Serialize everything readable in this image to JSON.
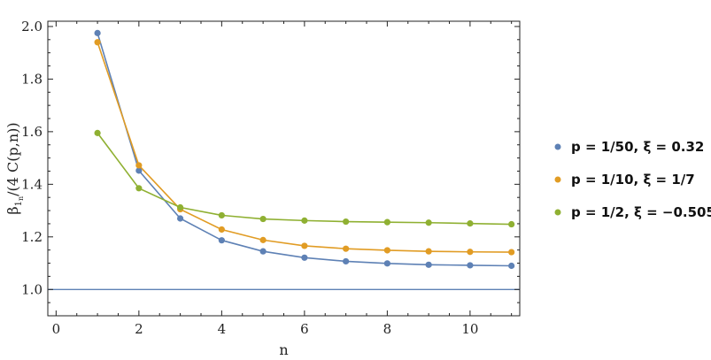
{
  "chart_data": {
    "type": "line",
    "title": "",
    "xlabel": "n",
    "ylabel": "β_{1_n}/(4 C(p,n))",
    "ylabel_parts": {
      "base": "β",
      "sub": "1",
      "subsub": "n",
      "rest": "/(4 C(p,n))"
    },
    "xlim": [
      -0.2,
      11.2
    ],
    "ylim": [
      0.9,
      2.02
    ],
    "x_ticks": [
      0,
      2,
      4,
      6,
      8,
      10
    ],
    "x_tick_labels": [
      "0",
      "2",
      "4",
      "6",
      "8",
      "10"
    ],
    "y_ticks": [
      1.0,
      1.2,
      1.4,
      1.6,
      1.8,
      2.0
    ],
    "y_tick_labels": [
      "1.0",
      "1.2",
      "1.4",
      "1.6",
      "1.8",
      "2.0"
    ],
    "grid": false,
    "legend_position": "right",
    "reference_line": {
      "y": 1.0,
      "color": "#5e81b5"
    },
    "x": [
      1,
      2,
      3,
      4,
      5,
      6,
      7,
      8,
      9,
      10,
      11
    ],
    "series": [
      {
        "name": "p = 1/50,  ξ = 0.32",
        "color": "#5e81b5",
        "values": [
          1.975,
          1.452,
          1.27,
          1.187,
          1.145,
          1.121,
          1.107,
          1.099,
          1.094,
          1.092,
          1.09
        ]
      },
      {
        "name": "p = 1/10,  ξ = 1/7",
        "color": "#e19c24",
        "values": [
          1.94,
          1.472,
          1.305,
          1.228,
          1.188,
          1.166,
          1.155,
          1.149,
          1.145,
          1.143,
          1.142
        ]
      },
      {
        "name": "p = 1/2,  ξ = −0.505",
        "color": "#8fb032",
        "values": [
          1.595,
          1.385,
          1.312,
          1.282,
          1.268,
          1.262,
          1.258,
          1.256,
          1.254,
          1.251,
          1.248
        ]
      }
    ]
  }
}
